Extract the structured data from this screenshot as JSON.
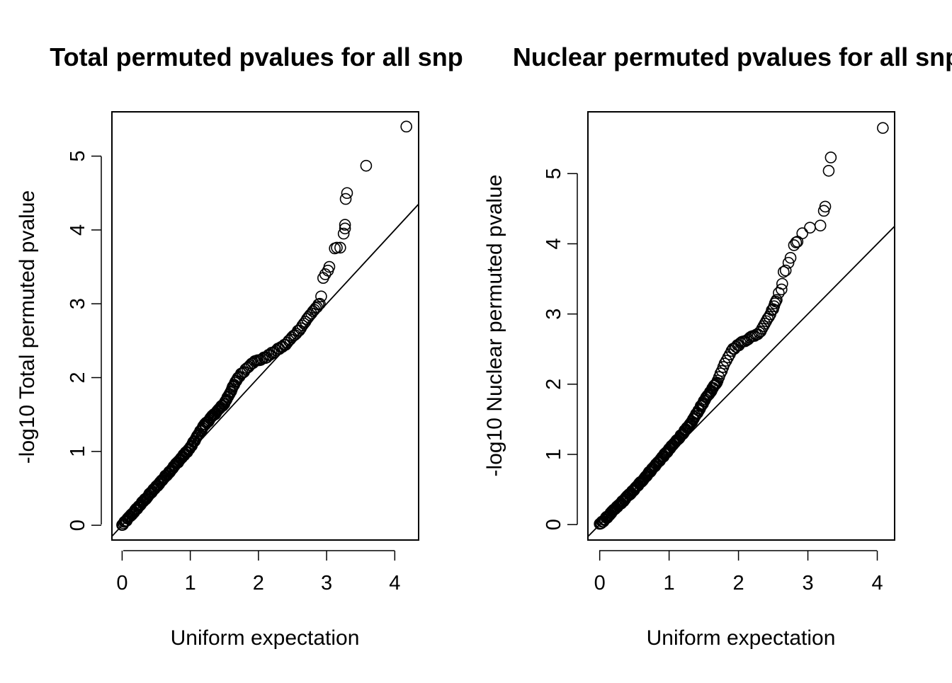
{
  "chart_data": [
    {
      "type": "scatter",
      "subtype": "qq-plot",
      "title": "Total permuted pvalues for all snp",
      "xlabel": "Uniform expectation",
      "ylabel": "-log10 Total permuted pvalue",
      "xlim": [
        -0.15,
        4.35
      ],
      "ylim": [
        -0.2,
        5.6
      ],
      "xticks": [
        "0",
        "1",
        "2",
        "3",
        "4"
      ],
      "yticks": [
        "0",
        "1",
        "2",
        "3",
        "4",
        "5"
      ],
      "reference_line": {
        "intercept": 0,
        "slope": 1
      },
      "marker": "open-circle",
      "curve_points": [
        [
          0,
          0
        ],
        [
          0.5,
          0.52
        ],
        [
          1.0,
          1.05
        ],
        [
          1.2,
          1.35
        ],
        [
          1.5,
          1.65
        ],
        [
          1.7,
          2.0
        ],
        [
          1.9,
          2.2
        ],
        [
          2.1,
          2.27
        ],
        [
          2.4,
          2.45
        ],
        [
          2.6,
          2.65
        ],
        [
          2.8,
          2.9
        ],
        [
          2.9,
          3.0
        ]
      ],
      "outliers": [
        [
          2.92,
          3.1
        ],
        [
          2.95,
          3.35
        ],
        [
          2.98,
          3.4
        ],
        [
          3.02,
          3.45
        ],
        [
          3.04,
          3.5
        ],
        [
          3.12,
          3.75
        ],
        [
          3.15,
          3.76
        ],
        [
          3.2,
          3.76
        ],
        [
          3.25,
          3.95
        ],
        [
          3.27,
          4.02
        ],
        [
          3.27,
          4.07
        ],
        [
          3.28,
          4.42
        ],
        [
          3.3,
          4.5
        ],
        [
          3.58,
          4.87
        ],
        [
          4.17,
          5.4
        ]
      ]
    },
    {
      "type": "scatter",
      "subtype": "qq-plot",
      "title": "Nuclear permuted pvalues for all snp",
      "xlabel": "Uniform expectation",
      "ylabel": "-log10 Nuclear permuted pvalue",
      "xlim": [
        -0.17,
        4.25
      ],
      "ylim": [
        -0.22,
        5.88
      ],
      "xticks": [
        "0",
        "1",
        "2",
        "3",
        "4"
      ],
      "yticks": [
        "0",
        "1",
        "2",
        "3",
        "4",
        "5"
      ],
      "reference_line": {
        "intercept": 0,
        "slope": 1
      },
      "marker": "open-circle",
      "curve_points": [
        [
          0,
          0
        ],
        [
          0.5,
          0.5
        ],
        [
          1.0,
          1.07
        ],
        [
          1.3,
          1.42
        ],
        [
          1.5,
          1.75
        ],
        [
          1.7,
          2.05
        ],
        [
          1.8,
          2.3
        ],
        [
          1.9,
          2.48
        ],
        [
          2.05,
          2.6
        ],
        [
          2.3,
          2.73
        ],
        [
          2.4,
          2.9
        ],
        [
          2.5,
          3.08
        ],
        [
          2.55,
          3.2
        ]
      ],
      "outliers": [
        [
          2.58,
          3.3
        ],
        [
          2.62,
          3.35
        ],
        [
          2.63,
          3.43
        ],
        [
          2.65,
          3.6
        ],
        [
          2.68,
          3.62
        ],
        [
          2.72,
          3.73
        ],
        [
          2.75,
          3.8
        ],
        [
          2.8,
          3.98
        ],
        [
          2.83,
          4.02
        ],
        [
          2.85,
          4.03
        ],
        [
          2.92,
          4.15
        ],
        [
          3.03,
          4.23
        ],
        [
          3.18,
          4.26
        ],
        [
          3.23,
          4.47
        ],
        [
          3.25,
          4.53
        ],
        [
          3.3,
          5.04
        ],
        [
          3.33,
          5.23
        ],
        [
          4.08,
          5.65
        ]
      ]
    }
  ]
}
